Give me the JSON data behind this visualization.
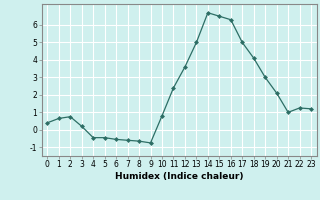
{
  "x": [
    0,
    1,
    2,
    3,
    4,
    5,
    6,
    7,
    8,
    9,
    10,
    11,
    12,
    13,
    14,
    15,
    16,
    17,
    18,
    19,
    20,
    21,
    22,
    23
  ],
  "y": [
    0.4,
    0.65,
    0.75,
    0.2,
    -0.45,
    -0.45,
    -0.55,
    -0.6,
    -0.65,
    -0.75,
    0.8,
    2.4,
    3.6,
    5.0,
    6.7,
    6.5,
    6.3,
    5.0,
    4.1,
    3.0,
    2.1,
    1.0,
    1.25,
    1.2
  ],
  "xlabel": "Humidex (Indice chaleur)",
  "bg_color": "#cff0ee",
  "grid_color": "#ffffff",
  "line_color": "#2d6e65",
  "marker_color": "#2d6e65",
  "ylim": [
    -1.5,
    7.2
  ],
  "xlim": [
    -0.5,
    23.5
  ],
  "yticks": [
    -1,
    0,
    1,
    2,
    3,
    4,
    5,
    6
  ],
  "xticks": [
    0,
    1,
    2,
    3,
    4,
    5,
    6,
    7,
    8,
    9,
    10,
    11,
    12,
    13,
    14,
    15,
    16,
    17,
    18,
    19,
    20,
    21,
    22,
    23
  ],
  "tick_fontsize": 5.5,
  "xlabel_fontsize": 6.5
}
